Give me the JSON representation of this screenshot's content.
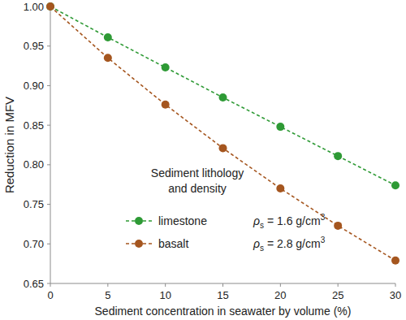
{
  "chart_data": {
    "type": "line",
    "x_label": "Sediment concentration in seawater by volume (%)",
    "y_label": "Reduction in MFV",
    "x": [
      0,
      5,
      10,
      15,
      20,
      25,
      30
    ],
    "series": [
      {
        "name": "limestone",
        "color": "#2e9a35",
        "marker": "circle",
        "line_style": "dashed",
        "values": [
          1.0,
          0.961,
          0.923,
          0.885,
          0.848,
          0.811,
          0.774
        ]
      },
      {
        "name": "basalt",
        "color": "#a5561f",
        "marker": "circle",
        "line_style": "dashed",
        "values": [
          1.0,
          0.935,
          0.876,
          0.821,
          0.77,
          0.723,
          0.679
        ]
      }
    ],
    "legend_title": [
      "Sediment lithology",
      "and density"
    ],
    "legend_notes": [
      {
        "symbol": "ρ",
        "subscript": "s",
        "text": " = 1.6 g/cm",
        "superscript": "3"
      },
      {
        "symbol": "ρ",
        "subscript": "s",
        "text": " = 2.8 g/cm",
        "superscript": "3"
      }
    ],
    "xlim": [
      0,
      30
    ],
    "xticks": [
      0,
      5,
      10,
      15,
      20,
      25,
      30
    ],
    "ylim": [
      0.65,
      1.0
    ],
    "yticks": [
      0.65,
      {
        "value": 0.7,
        "label": "0.70"
      },
      0.75,
      {
        "value": 0.8,
        "label": "0.80"
      },
      0.85,
      {
        "value": 0.9,
        "label": "0.90"
      },
      0.95,
      {
        "value": 1.0,
        "label": "1.00"
      }
    ],
    "grid": false,
    "legend": "center"
  }
}
